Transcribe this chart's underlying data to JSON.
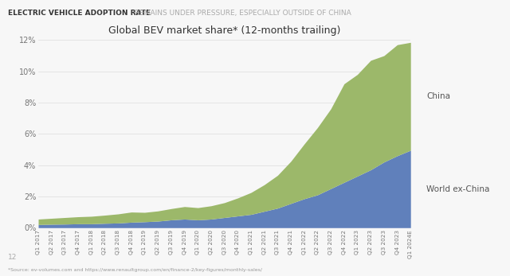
{
  "title": "Global BEV market share* (12-months trailing)",
  "suptitle_bold": "ELECTRIC VEHICLE ADOPTION RATE",
  "suptitle_regular": " REMAINS UNDER PRESSURE, ESPECIALLY OUTSIDE OF CHINA",
  "footnote": "*Source: ev-volumes.com and https://www.renaultgroup.com/en/finance-2/key-figures/monthly-sales/",
  "page_number": "12",
  "labels": [
    "Q1 2017",
    "Q2 2017",
    "Q3 2017",
    "Q4 2017",
    "Q1 2018",
    "Q2 2018",
    "Q3 2018",
    "Q4 2018",
    "Q1 2019",
    "Q2 2019",
    "Q3 2019",
    "Q4 2019",
    "Q1 2020",
    "Q2 2020",
    "Q3 2020",
    "Q4 2020",
    "Q1 2021",
    "Q2 2021",
    "Q3 2021",
    "Q4 2021",
    "Q1 2022",
    "Q2 2022",
    "Q3 2022",
    "Q4 2022",
    "Q1 2023",
    "Q2 2023",
    "Q3 2023",
    "Q4 2023",
    "Q1 2024E"
  ],
  "world_ex_china": [
    0.2,
    0.22,
    0.23,
    0.25,
    0.25,
    0.28,
    0.3,
    0.35,
    0.38,
    0.42,
    0.5,
    0.55,
    0.5,
    0.55,
    0.65,
    0.75,
    0.85,
    1.05,
    1.25,
    1.55,
    1.85,
    2.1,
    2.5,
    2.9,
    3.3,
    3.7,
    4.2,
    4.6,
    4.95
  ],
  "china": [
    0.35,
    0.38,
    0.42,
    0.45,
    0.48,
    0.52,
    0.58,
    0.65,
    0.6,
    0.65,
    0.72,
    0.8,
    0.78,
    0.85,
    0.95,
    1.15,
    1.4,
    1.7,
    2.1,
    2.7,
    3.5,
    4.3,
    5.1,
    6.3,
    6.5,
    7.0,
    6.8,
    7.1,
    6.9
  ],
  "world_ex_china_color": "#6080bb",
  "china_color": "#9cb86a",
  "background_color": "#f7f7f7",
  "ylim": [
    0,
    12
  ],
  "yticks": [
    0,
    2,
    4,
    6,
    8,
    10,
    12
  ],
  "ytick_labels": [
    "0%",
    "2%",
    "4%",
    "6%",
    "8%",
    "10%",
    "12%"
  ],
  "label_china": "China",
  "label_world": "World ex-China",
  "title_fontsize": 9.0,
  "suptitle_fontsize": 6.5,
  "label_fontsize": 7.5
}
